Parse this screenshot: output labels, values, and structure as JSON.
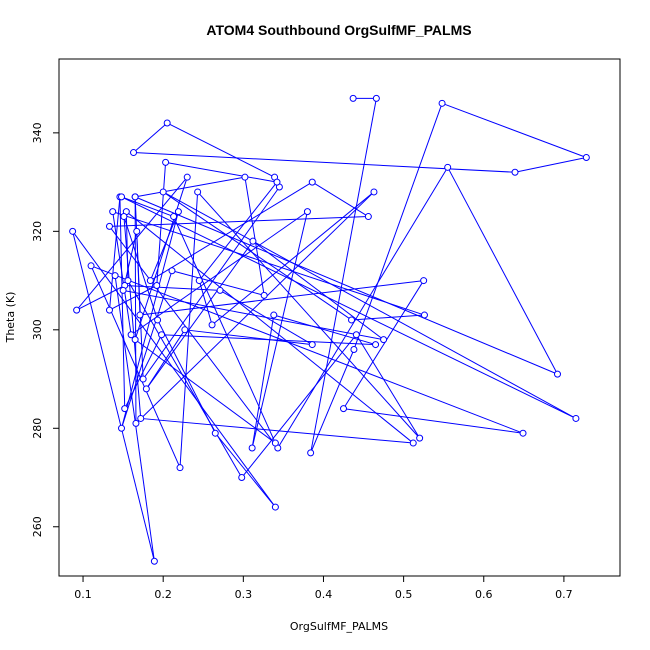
{
  "chart_data": {
    "type": "scatter",
    "title": "ATOM4 Southbound OrgSulfMF_PALMS",
    "xlabel": "OrgSulfMF_PALMS",
    "ylabel": "Theta (K)",
    "xlim": [
      0.07,
      0.77
    ],
    "ylim": [
      250,
      355
    ],
    "xticks": [
      "0.1",
      "0.2",
      "0.3",
      "0.4",
      "0.5",
      "0.6",
      "0.7"
    ],
    "yticks": [
      "260",
      "280",
      "300",
      "320",
      "340"
    ],
    "xtick_values": [
      0.1,
      0.2,
      0.3,
      0.4,
      0.5,
      0.6,
      0.7
    ],
    "ytick_values": [
      260,
      280,
      300,
      320,
      340
    ],
    "grid": false,
    "connected": true,
    "color": "#0000ff",
    "series": [
      {
        "x": [
          0.437,
          0.466,
          0.384,
          0.438,
          0.548,
          0.728,
          0.639,
          0.163,
          0.205,
          0.339,
          0.345,
          0.175,
          0.165,
          0.302,
          0.326,
          0.211,
          0.148,
          0.219,
          0.184,
          0.386,
          0.456,
          0.133,
          0.343,
          0.555,
          0.692,
          0.165,
          0.166,
          0.463,
          0.261,
          0.245,
          0.342,
          0.203,
          0.192,
          0.133,
          0.146,
          0.152,
          0.198,
          0.465,
          0.338,
          0.311,
          0.38,
          0.16,
          0.137,
          0.526,
          0.435,
          0.2,
          0.715,
          0.148,
          0.213,
          0.34,
          0.165,
          0.23,
          0.092,
          0.152,
          0.271,
          0.386,
          0.227,
          0.179,
          0.312,
          0.475,
          0.15,
          0.167,
          0.171,
          0.525,
          0.425,
          0.649,
          0.11,
          0.221,
          0.243,
          0.52,
          0.441,
          0.298,
          0.156,
          0.154,
          0.512,
          0.172,
          0.151,
          0.193,
          0.265,
          0.34,
          0.087,
          0.189,
          0.14
        ],
        "y": [
          347,
          347,
          275,
          296,
          346,
          335,
          332,
          336,
          342,
          331,
          329,
          290,
          327,
          331,
          307,
          312,
          280,
          324,
          310,
          330,
          323,
          321,
          276,
          333,
          291,
          327,
          281,
          328,
          301,
          310,
          330,
          334,
          309,
          304,
          327,
          284,
          299,
          297,
          303,
          276,
          324,
          299,
          324,
          303,
          302,
          328,
          282,
          327,
          323,
          277,
          298,
          331,
          304,
          309,
          308,
          297,
          300,
          288,
          318,
          298,
          308,
          320,
          303,
          310,
          284,
          279,
          313,
          272,
          328,
          278,
          299,
          270,
          310,
          324,
          277,
          282,
          323,
          302,
          279,
          264,
          320,
          253,
          311
        ]
      }
    ]
  }
}
